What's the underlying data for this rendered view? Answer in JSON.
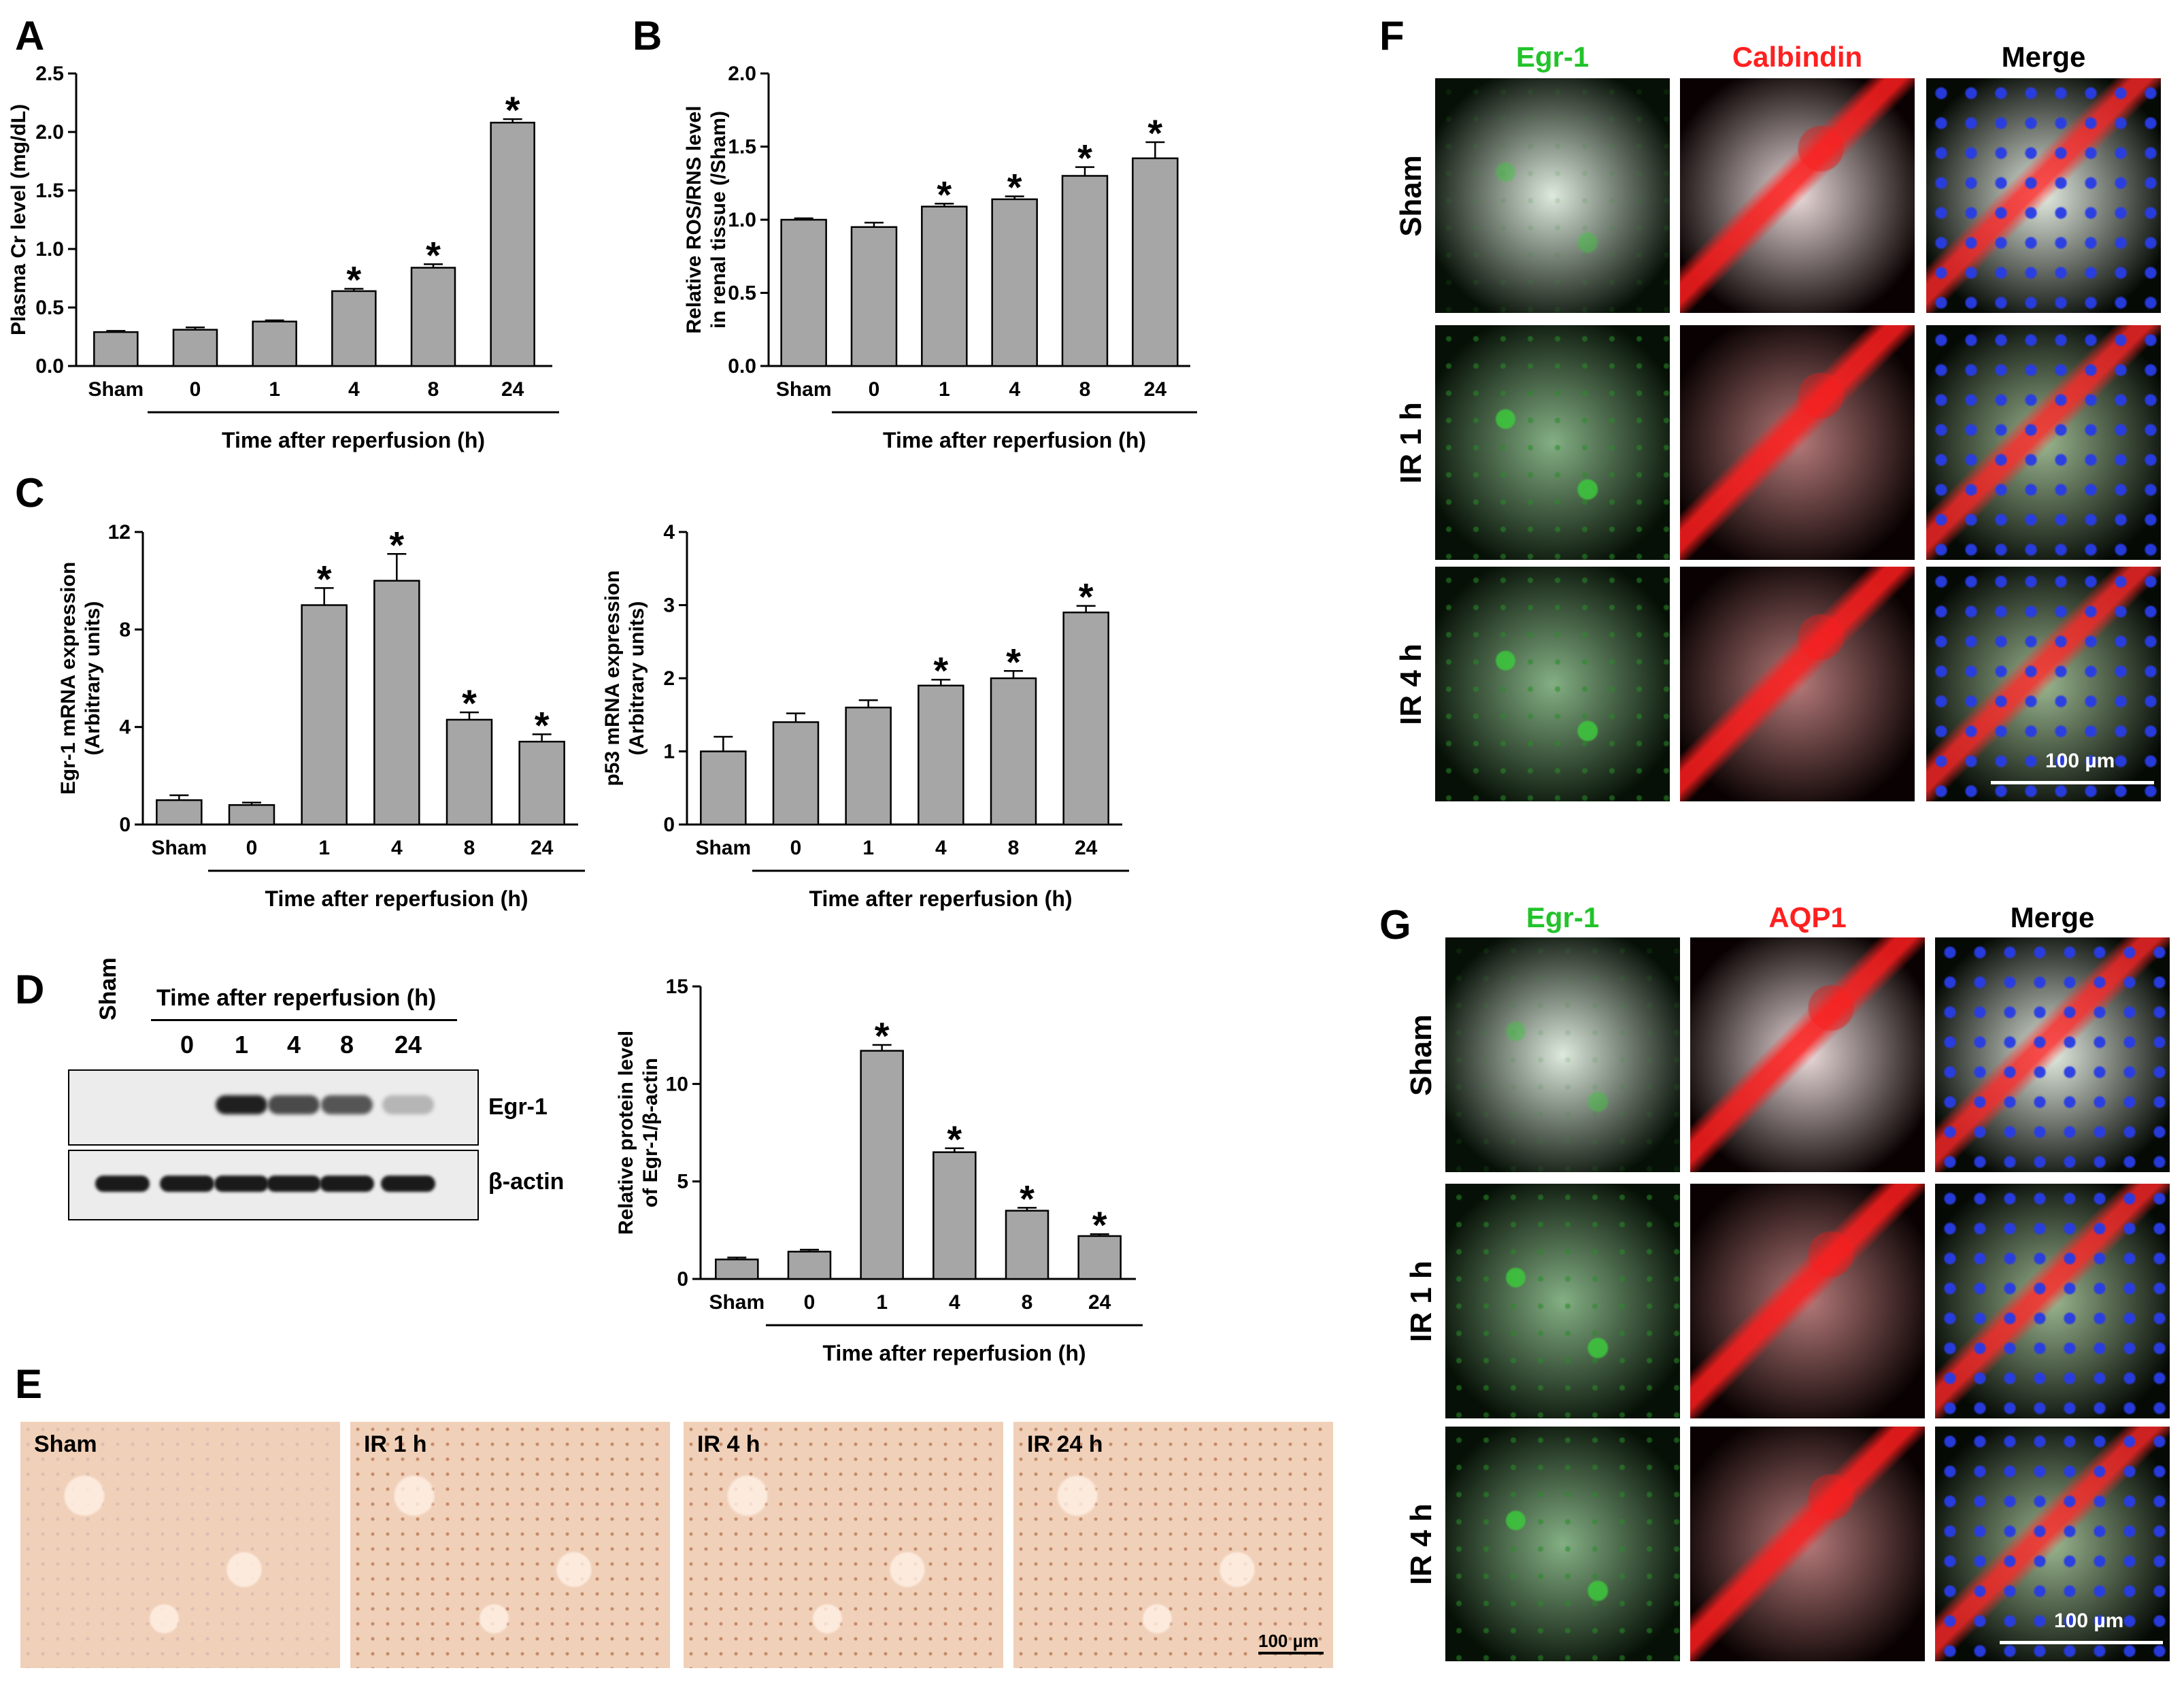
{
  "panels": {
    "A": "A",
    "B": "B",
    "C": "C",
    "D": "D",
    "E": "E",
    "F": "F",
    "G": "G"
  },
  "colors": {
    "bar": "#a6a6a6",
    "green": "#22c32a",
    "red": "#ff2020",
    "ihc_bg": "#f0d0b8"
  },
  "chart_data": [
    {
      "id": "A",
      "type": "bar",
      "categories": [
        "Sham",
        "0",
        "1",
        "4",
        "8",
        "24"
      ],
      "values": [
        0.29,
        0.31,
        0.38,
        0.64,
        0.84,
        2.08
      ],
      "errors": [
        0.01,
        0.02,
        0.01,
        0.02,
        0.03,
        0.03
      ],
      "significant": [
        false,
        false,
        false,
        true,
        true,
        true
      ],
      "ylabel": "Plasma Cr level (mg/dL)",
      "xlabel": "Time after reperfusion (h)",
      "ylim": [
        0,
        2.5
      ],
      "yticks": [
        "0.0",
        "0.5",
        "1.0",
        "1.5",
        "2.0",
        "2.5"
      ]
    },
    {
      "id": "B",
      "type": "bar",
      "categories": [
        "Sham",
        "0",
        "1",
        "4",
        "8",
        "24"
      ],
      "values": [
        1.0,
        0.95,
        1.09,
        1.14,
        1.3,
        1.42
      ],
      "errors": [
        0.01,
        0.03,
        0.02,
        0.02,
        0.06,
        0.11
      ],
      "significant": [
        false,
        false,
        true,
        true,
        true,
        true
      ],
      "ylabel_line1": "Relative ROS/RNS level",
      "ylabel_line2": "in renal tissue (/Sham)",
      "xlabel": "Time after reperfusion (h)",
      "ylim": [
        0,
        2.0
      ],
      "yticks": [
        "0.0",
        "0.5",
        "1.0",
        "1.5",
        "2.0"
      ]
    },
    {
      "id": "C1",
      "type": "bar",
      "categories": [
        "Sham",
        "0",
        "1",
        "4",
        "8",
        "24"
      ],
      "values": [
        1.0,
        0.8,
        9.0,
        10.0,
        4.3,
        3.4
      ],
      "errors": [
        0.2,
        0.1,
        0.7,
        1.1,
        0.3,
        0.3
      ],
      "significant": [
        false,
        false,
        true,
        true,
        true,
        true
      ],
      "ylabel_line1": "Egr-1 mRNA expression",
      "ylabel_line2": "(Arbitrary units)",
      "xlabel": "Time after reperfusion (h)",
      "ylim": [
        0,
        12
      ],
      "yticks": [
        "0",
        "4",
        "8",
        "12"
      ]
    },
    {
      "id": "C2",
      "type": "bar",
      "categories": [
        "Sham",
        "0",
        "1",
        "4",
        "8",
        "24"
      ],
      "values": [
        1.0,
        1.4,
        1.6,
        1.9,
        2.0,
        2.9
      ],
      "errors": [
        0.2,
        0.12,
        0.1,
        0.08,
        0.1,
        0.09
      ],
      "significant": [
        false,
        false,
        false,
        true,
        true,
        true
      ],
      "ylabel_line1": "p53 mRNA expression",
      "ylabel_line2": "(Arbitrary units)",
      "xlabel": "Time after reperfusion (h)",
      "ylim": [
        0,
        4
      ],
      "yticks": [
        "0",
        "1",
        "2",
        "3",
        "4"
      ]
    },
    {
      "id": "D2",
      "type": "bar",
      "categories": [
        "Sham",
        "0",
        "1",
        "4",
        "8",
        "24"
      ],
      "values": [
        1.0,
        1.4,
        11.7,
        6.5,
        3.5,
        2.2
      ],
      "errors": [
        0.1,
        0.1,
        0.3,
        0.2,
        0.15,
        0.1
      ],
      "significant": [
        false,
        false,
        true,
        true,
        true,
        true
      ],
      "ylabel_line1": "Relative protein level",
      "ylabel_line2": "of Egr-1/β-actin",
      "xlabel": "Time after reperfusion (h)",
      "ylim": [
        0,
        15
      ],
      "yticks": [
        "0",
        "5",
        "10",
        "15"
      ]
    }
  ],
  "blot": {
    "sham_label": "Sham",
    "header": "Time after reperfusion (h)",
    "lanes": [
      "0",
      "1",
      "4",
      "8",
      "24"
    ],
    "row1": "Egr-1",
    "row2": "β-actin",
    "egr1_intensity": [
      0.0,
      0.0,
      0.95,
      0.75,
      0.7,
      0.25
    ],
    "actin_intensity": [
      1,
      1,
      1,
      1,
      1,
      1
    ]
  },
  "ihc": {
    "tiles": [
      "Sham",
      "IR 1 h",
      "IR 4 h",
      "IR 24 h"
    ],
    "scale": "100 µm"
  },
  "panelF": {
    "cols": [
      "Egr-1",
      "Calbindin",
      "Merge"
    ],
    "rows": [
      "Sham",
      "IR 1 h",
      "IR 4 h"
    ],
    "scale": "100 µm"
  },
  "panelG": {
    "cols": [
      "Egr-1",
      "AQP1",
      "Merge"
    ],
    "rows": [
      "Sham",
      "IR 1 h",
      "IR 4 h"
    ],
    "scale": "100 µm"
  },
  "star": "*"
}
